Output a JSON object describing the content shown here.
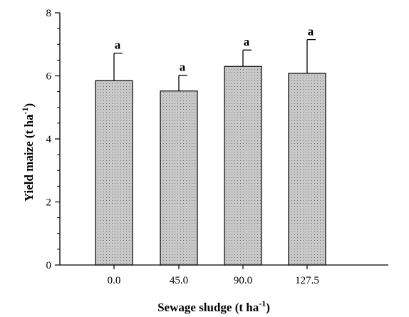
{
  "chart_data": {
    "type": "bar",
    "categories": [
      "0.0",
      "45.0",
      "90.0",
      "127.5"
    ],
    "values": [
      5.85,
      5.52,
      6.3,
      6.08
    ],
    "error_upper": [
      6.72,
      6.02,
      6.82,
      7.15
    ],
    "significance_labels": [
      "a",
      "a",
      "a",
      "a"
    ],
    "xlabel": {
      "main": "Sewage sludge (t ha",
      "sup": "-1",
      "close": ")"
    },
    "ylabel": {
      "main": "Yield maize (t ha",
      "sup": "-1",
      "close": ")"
    },
    "ylim": [
      0,
      8
    ],
    "yticks": [
      "0",
      "2",
      "4",
      "6",
      "8"
    ],
    "y_minor_step": 0.5,
    "grid": false,
    "legend": "none",
    "colors": {
      "bar_fill": "#c8c8c8",
      "bar_stroke": "#000000",
      "pattern_dot": "#6f6f6f"
    }
  }
}
